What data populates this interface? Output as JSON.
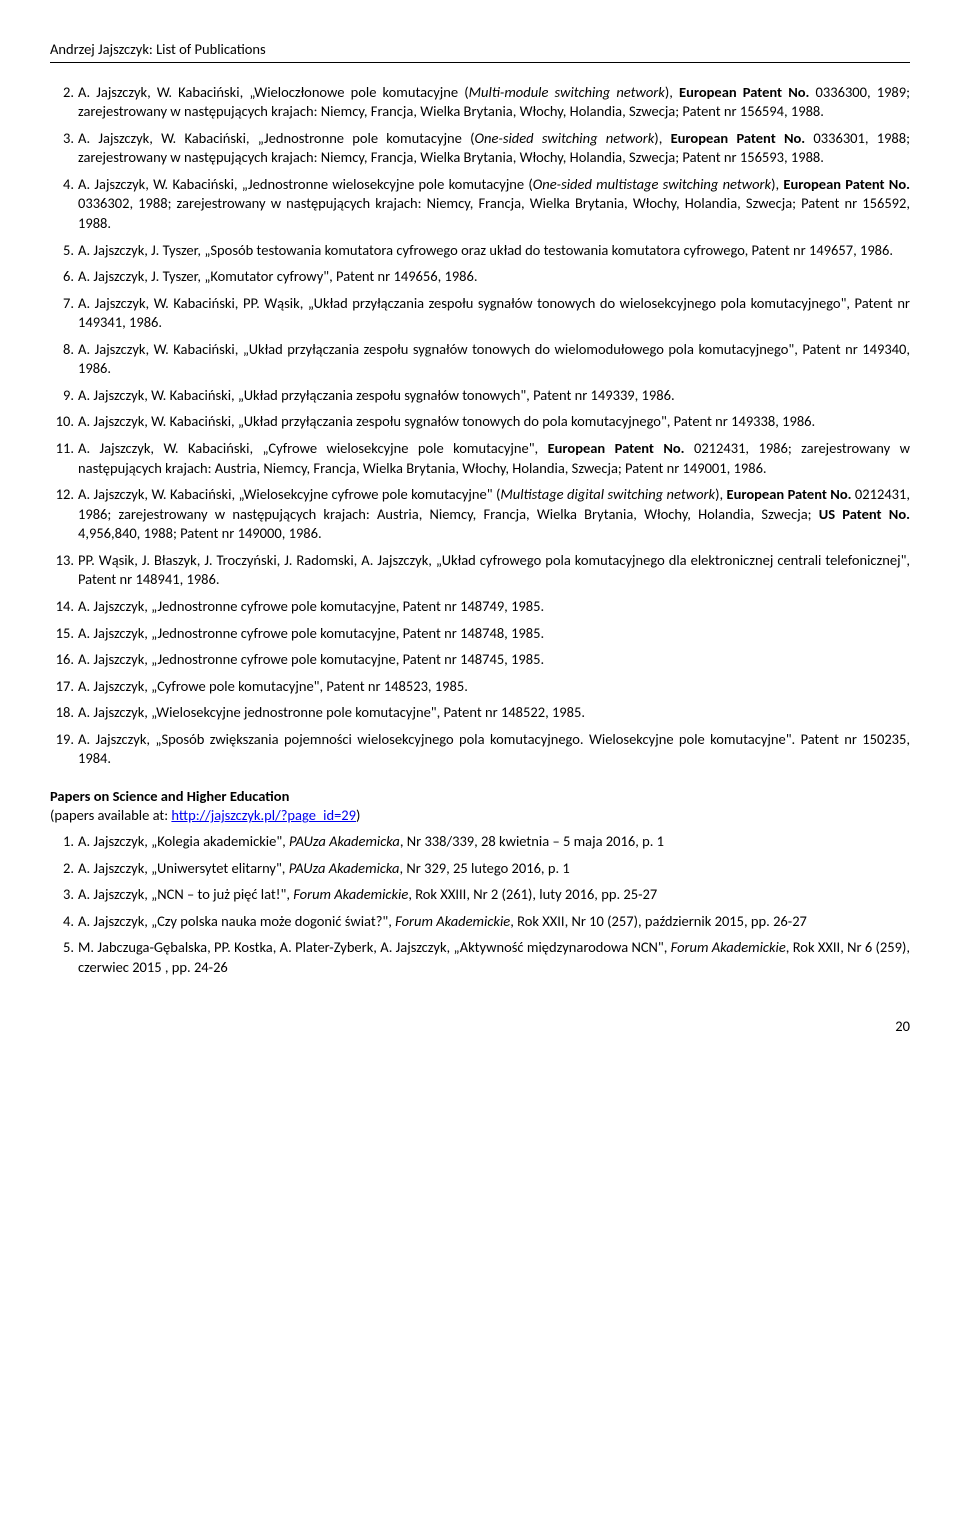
{
  "header": "Andrzej Jajszczyk: List of Publications",
  "main_list": [
    {
      "n": "2.",
      "parts": [
        {
          "t": "A. Jajszczyk, W. Kabaciński, „Wieloczłonowe pole komutacyjne ("
        },
        {
          "t": "Multi-module switching network",
          "i": true
        },
        {
          "t": "), "
        },
        {
          "t": "European Patent No.",
          "b": true
        },
        {
          "t": " 0336300, 1989; zarejestrowany w następujących krajach: Niemcy, Francja, Wielka Brytania, Włochy, Holandia, Szwecja; Patent nr 156594, 1988."
        }
      ]
    },
    {
      "n": "3.",
      "parts": [
        {
          "t": "A. Jajszczyk, W. Kabaciński, „Jednostronne pole komutacyjne ("
        },
        {
          "t": "One-sided switching network",
          "i": true
        },
        {
          "t": "), "
        },
        {
          "t": "European Patent No.",
          "b": true
        },
        {
          "t": " 0336301, 1988; zarejestrowany w następujących krajach: Niemcy, Francja, Wielka Brytania, Włochy, Holandia, Szwecja; Patent nr 156593, 1988."
        }
      ]
    },
    {
      "n": "4.",
      "parts": [
        {
          "t": "A. Jajszczyk, W. Kabaciński, „Jednostronne wielosekcyjne pole komutacyjne ("
        },
        {
          "t": "One-sided multistage switching network",
          "i": true
        },
        {
          "t": "), "
        },
        {
          "t": "European Patent No.",
          "b": true
        },
        {
          "t": " 0336302, 1988; zarejestrowany w następujących krajach: Niemcy, Francja, Wielka Brytania, Włochy, Holandia, Szwecja; Patent nr 156592, 1988."
        }
      ]
    },
    {
      "n": "5.",
      "parts": [
        {
          "t": "A. Jajszczyk, J. Tyszer, „Sposób testowania komutatora cyfrowego oraz układ do testowania komutatora cyfrowego, Patent nr 149657, 1986."
        }
      ]
    },
    {
      "n": "6.",
      "parts": [
        {
          "t": "A. Jajszczyk, J. Tyszer, „Komutator cyfrowy\", Patent nr 149656, 1986."
        }
      ]
    },
    {
      "n": "7.",
      "parts": [
        {
          "t": "A. Jajszczyk, W. Kabaciński, PP. Wąsik, „Układ przyłączania zespołu sygnałów tonowych do wielosekcyjnego pola komutacyjnego\", Patent nr 149341, 1986."
        }
      ]
    },
    {
      "n": "8.",
      "parts": [
        {
          "t": "A. Jajszczyk, W. Kabaciński, „Układ przyłączania zespołu sygnałów tonowych do wielomodułowego pola komutacyjnego\", Patent nr 149340, 1986."
        }
      ]
    },
    {
      "n": "9.",
      "parts": [
        {
          "t": "A. Jajszczyk, W. Kabaciński, „Układ przyłączania zespołu sygnałów tonowych\", Patent nr 149339, 1986."
        }
      ]
    },
    {
      "n": "10.",
      "parts": [
        {
          "t": "A. Jajszczyk, W. Kabaciński, „Układ przyłączania zespołu sygnałów tonowych do pola komutacyjnego\", Patent nr 149338, 1986."
        }
      ]
    },
    {
      "n": "11.",
      "parts": [
        {
          "t": "A. Jajszczyk, W. Kabaciński, „Cyfrowe wielosekcyjne pole komutacyjne\", "
        },
        {
          "t": "European Patent No.",
          "b": true
        },
        {
          "t": " 0212431, 1986; zarejestrowany w następujących krajach: Austria, Niemcy, Francja, Wielka Brytania, Włochy, Holandia, Szwecja; Patent nr 149001, 1986."
        }
      ]
    },
    {
      "n": "12.",
      "parts": [
        {
          "t": "A. Jajszczyk, W. Kabaciński, „Wielosekcyjne cyfrowe pole komutacyjne\" ("
        },
        {
          "t": "Multistage digital switching network",
          "i": true
        },
        {
          "t": "), "
        },
        {
          "t": "European Patent No.",
          "b": true
        },
        {
          "t": " 0212431, 1986; zarejestrowany w następujących krajach: Austria, Niemcy, Francja, Wielka Brytania, Włochy, Holandia, Szwecja; "
        },
        {
          "t": "US Patent No.",
          "b": true
        },
        {
          "t": " 4,956,840, 1988; Patent nr 149000, 1986."
        }
      ]
    },
    {
      "n": "13.",
      "parts": [
        {
          "t": "PP. Wąsik, J. Błaszyk, J. Troczyński, J. Radomski, A. Jajszczyk, „Układ cyfrowego pola komutacyjnego dla elektronicznej centrali telefonicznej\", Patent nr 148941, 1986."
        }
      ]
    },
    {
      "n": "14.",
      "parts": [
        {
          "t": "A. Jajszczyk, „Jednostronne cyfrowe pole komutacyjne, Patent nr 148749, 1985."
        }
      ]
    },
    {
      "n": "15.",
      "parts": [
        {
          "t": "A. Jajszczyk, „Jednostronne cyfrowe pole komutacyjne, Patent nr 148748, 1985."
        }
      ]
    },
    {
      "n": "16.",
      "parts": [
        {
          "t": "A. Jajszczyk, „Jednostronne cyfrowe pole komutacyjne, Patent nr 148745, 1985."
        }
      ]
    },
    {
      "n": "17.",
      "parts": [
        {
          "t": "A. Jajszczyk, „Cyfrowe pole komutacyjne\", Patent nr 148523, 1985."
        }
      ]
    },
    {
      "n": "18.",
      "parts": [
        {
          "t": "A. Jajszczyk, „Wielosekcyjne jednostronne pole komutacyjne\", Patent nr 148522, 1985."
        }
      ]
    },
    {
      "n": "19.",
      "parts": [
        {
          "t": "A. Jajszczyk, „Sposób zwiększania pojemności wielosekcyjnego pola komutacyjnego. Wielosekcyjne pole komutacyjne\". Patent nr 150235, 1984."
        }
      ]
    }
  ],
  "section2_title": "Papers on Science and Higher Education",
  "section2_sub_pre": "(papers available at: ",
  "section2_link": "http://jajszczyk.pl/?page_id=29",
  "section2_sub_post": ")",
  "sec2_list": [
    {
      "n": "1.",
      "parts": [
        {
          "t": "A. Jajszczyk, „Kolegia akademickie\", "
        },
        {
          "t": "PAUza Akademicka",
          "i": true
        },
        {
          "t": ", Nr 338/339, 28 kwietnia – 5 maja 2016, p. 1"
        }
      ]
    },
    {
      "n": "2.",
      "parts": [
        {
          "t": "A. Jajszczyk, „Uniwersytet elitarny\", "
        },
        {
          "t": "PAUza Akademicka",
          "i": true
        },
        {
          "t": ", Nr 329, 25 lutego 2016, p. 1"
        }
      ]
    },
    {
      "n": "3.",
      "parts": [
        {
          "t": "A. Jajszczyk, „NCN – to już pięć lat!\", "
        },
        {
          "t": "Forum Akademickie",
          "i": true
        },
        {
          "t": ", Rok XXIII, Nr 2 (261), luty 2016, pp. 25-27"
        }
      ]
    },
    {
      "n": "4.",
      "parts": [
        {
          "t": "A. Jajszczyk, „Czy polska nauka może dogonić świat?\", "
        },
        {
          "t": "Forum Akademickie",
          "i": true
        },
        {
          "t": ", Rok XXII, Nr 10 (257), październik 2015, pp. 26-27"
        }
      ]
    },
    {
      "n": "5.",
      "parts": [
        {
          "t": "M. Jabczuga-Gębalska, PP. Kostka, A. Plater-Zyberk, A. Jajszczyk, „Aktywność międzynarodowa NCN\", "
        },
        {
          "t": "Forum Akademickie",
          "i": true
        },
        {
          "t": ", Rok XXII, Nr 6 (259), czerwiec 2015 , pp. 24-26"
        }
      ]
    }
  ],
  "page_number": "20"
}
